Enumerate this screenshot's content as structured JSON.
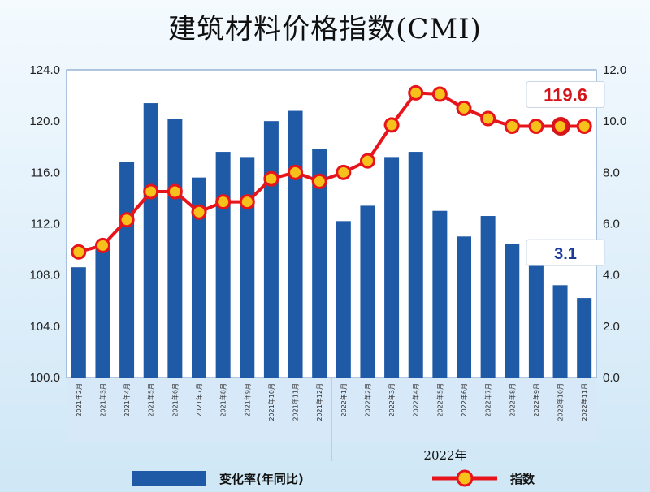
{
  "title": "建筑材料价格指数(CMI)",
  "chart_data": {
    "type": "bar+line",
    "title": "建筑材料价格指数(CMI)",
    "categories": [
      "2021年2月",
      "2021年3月",
      "2021年4月",
      "2021年5月",
      "2021年6月",
      "2021年7月",
      "2021年8月",
      "2021年9月",
      "2021年10月",
      "2021年11月",
      "2021年12月",
      "2022年1月",
      "2022年2月",
      "2022年3月",
      "2022年4月",
      "2022年5月",
      "2022年6月",
      "2022年7月",
      "2022年8月",
      "2022年9月",
      "2022年10月",
      "2022年11月"
    ],
    "year_group_label": "2022年",
    "series": [
      {
        "name": "变化率(年同比)",
        "type": "bar",
        "axis": "right",
        "color": "#1f5aa6",
        "values": [
          4.3,
          5.0,
          8.4,
          10.7,
          10.1,
          7.8,
          8.8,
          8.6,
          10.0,
          10.4,
          8.9,
          6.1,
          6.7,
          8.6,
          8.8,
          6.5,
          5.5,
          6.3,
          5.2,
          5.2,
          3.6,
          3.1
        ]
      },
      {
        "name": "指数",
        "type": "line",
        "axis": "left",
        "color": "#e8141b",
        "marker_color": "#f5c11a",
        "values": [
          109.8,
          110.3,
          112.3,
          114.5,
          114.5,
          112.9,
          113.7,
          113.7,
          115.5,
          116.0,
          115.3,
          116.0,
          116.9,
          119.7,
          122.2,
          122.1,
          121.0,
          120.2,
          119.6,
          119.6,
          119.6,
          119.6
        ]
      }
    ],
    "left_axis": {
      "ylim": [
        100.0,
        124.0
      ],
      "ticks": [
        "100.0",
        "104.0",
        "108.0",
        "112.0",
        "116.0",
        "120.0",
        "124.0"
      ]
    },
    "right_axis": {
      "ylim": [
        0.0,
        12.0
      ],
      "ticks": [
        "0.0",
        "2.0",
        "4.0",
        "6.0",
        "8.0",
        "10.0",
        "12.0"
      ]
    },
    "annotations": [
      {
        "text": "119.6",
        "color": "#d4141b",
        "target": "指数",
        "index": 21
      },
      {
        "text": "3.1",
        "color": "#1a3a9a",
        "target": "变化率(年同比)",
        "index": 21
      }
    ],
    "grid": false,
    "legend_position": "bottom"
  }
}
